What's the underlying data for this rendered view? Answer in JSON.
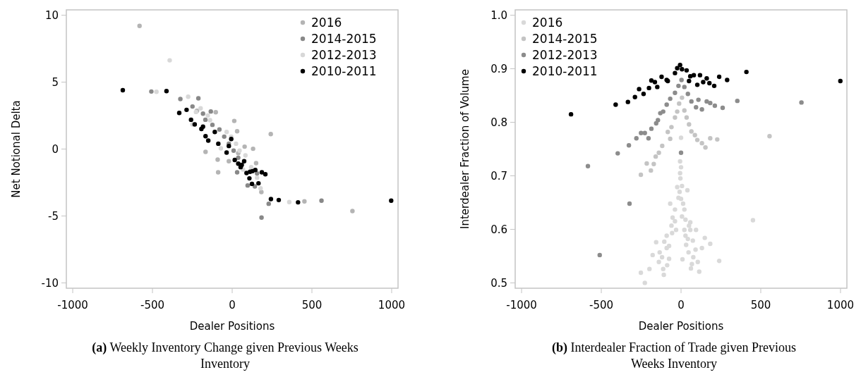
{
  "chart_data": [
    {
      "type": "scatter",
      "title": "(a) Weekly Inventory Change given Previous Weeks Inventory",
      "xlabel": "Dealer Positions",
      "ylabel": "Net Notional Delta",
      "xlim": [
        -1040,
        1040
      ],
      "xticks": [
        -1000,
        -500,
        0,
        500,
        1000
      ],
      "ylim": [
        -10.4,
        10.4
      ],
      "yticks": [
        -10,
        -5,
        0,
        5,
        10
      ],
      "legend": "top right",
      "marker": "circle",
      "grid": false,
      "series": [
        {
          "name": "2016",
          "color": "#b4b4b4",
          "x": [
            -581,
            242,
            13,
            -88,
            -167,
            78,
            131,
            150,
            -91,
            -21,
            31,
            754,
            453,
            183,
            -221,
            -103,
            38
          ],
          "values": [
            9.2,
            1.12,
            2.1,
            -1.74,
            -0.21,
            0.18,
            0.02,
            -1.05,
            -0.79,
            -0.91,
            1.33,
            -4.63,
            -3.91,
            -3.21,
            2.86,
            2.75,
            -0.3
          ]
        },
        {
          "name": "2014-2015",
          "color": "#888888",
          "x": [
            -507,
            -325,
            -212,
            -249,
            -183,
            -134,
            -168,
            -124,
            -80,
            -50,
            -21,
            9,
            38,
            31,
            97,
            156,
            142,
            229,
            560,
            184
          ],
          "values": [
            4.3,
            3.74,
            3.79,
            3.18,
            2.65,
            2.81,
            2.19,
            1.81,
            1.46,
            0.93,
            0.4,
            -0.12,
            -0.65,
            -1.74,
            -2.72,
            -1.82,
            -2.79,
            -4.09,
            -3.86,
            -5.12
          ]
        },
        {
          "name": "2012-2013",
          "color": "#d8d8d8",
          "x": [
            -392,
            -475,
            -276,
            -198,
            -153,
            -227,
            -249,
            -139,
            -35,
            -6,
            24,
            46,
            83,
            119,
            156,
            358,
            178,
            68,
            -71
          ],
          "values": [
            6.63,
            4.28,
            3.91,
            3.04,
            2.51,
            2.77,
            1.84,
            2.16,
            1.28,
            0.93,
            0.4,
            -0.12,
            -0.47,
            -1.35,
            -2.14,
            -3.96,
            -2.93,
            -1.53,
            0.05
          ]
        },
        {
          "name": "2010-2011",
          "color": "#000000",
          "x": [
            -686,
            -412,
            -332,
            -286,
            -258,
            -235,
            -193,
            -183,
            -167,
            -150,
            -87,
            -35,
            -6,
            16,
            38,
            53,
            75,
            90,
            112,
            127,
            145,
            108,
            124,
            165,
            186,
            208,
            243,
            292,
            413,
            997,
            -109,
            -21,
            60
          ],
          "values": [
            4.4,
            4.33,
            2.7,
            2.93,
            2.19,
            1.84,
            1.5,
            1.67,
            0.96,
            0.63,
            0.4,
            -0.26,
            0.75,
            -0.82,
            -1.09,
            -1.35,
            -0.91,
            -1.79,
            -1.7,
            -1.65,
            -1.56,
            -2.19,
            -2.6,
            -2.56,
            -1.74,
            -1.88,
            -3.74,
            -3.81,
            -3.98,
            -3.86,
            1.28,
            0.23,
            -1.18
          ]
        }
      ]
    },
    {
      "type": "scatter",
      "title": "(b) Interdealer Fraction of Trade given Previous Weeks Inventory",
      "xlabel": "Dealer Positions",
      "ylabel": "Interdealer Fraction of Volume",
      "xlim": [
        -1040,
        1040
      ],
      "xticks": [
        -1000,
        -500,
        0,
        500,
        1000
      ],
      "ylim": [
        0.49,
        1.01
      ],
      "yticks": [
        {
          "value": 0.5,
          "label": "0.5"
        },
        {
          "value": 0.6,
          "label": "0.6"
        },
        {
          "value": 0.7,
          "label": "0.7"
        },
        {
          "value": 0.8,
          "label": "0.8"
        },
        {
          "value": 0.9,
          "label": "0.9"
        },
        {
          "value": 1.0,
          "label": "1.0"
        }
      ],
      "legend": "top left",
      "marker": "circle",
      "grid": false,
      "series": [
        {
          "name": "2016",
          "color": "#d9d9d9",
          "x": [
            0,
            -6,
            0,
            -6,
            -4,
            6,
            -24,
            -9,
            40,
            -16,
            0,
            13,
            -68,
            21,
            -38,
            -53,
            6,
            28,
            -38,
            -60,
            58,
            50,
            -31,
            21,
            94,
            58,
            -56,
            -90,
            28,
            43,
            74,
            149,
            183,
            -156,
            -105,
            32,
            -75,
            -90,
            131,
            91,
            47,
            -134,
            -178,
            -119,
            77,
            -75,
            9,
            239,
            -139,
            105,
            68,
            -87,
            -112,
            -198,
            62,
            -252,
            114,
            -108,
            -227,
            451
          ],
          "values": [
            0.771,
            0.727,
            0.716,
            0.705,
            0.695,
            0.681,
            0.679,
            0.67,
            0.673,
            0.659,
            0.657,
            0.648,
            0.648,
            0.637,
            0.637,
            0.622,
            0.624,
            0.618,
            0.615,
            0.607,
            0.613,
            0.607,
            0.599,
            0.599,
            0.599,
            0.599,
            0.593,
            0.588,
            0.588,
            0.582,
            0.579,
            0.584,
            0.573,
            0.576,
            0.577,
            0.571,
            0.569,
            0.565,
            0.565,
            0.562,
            0.557,
            0.557,
            0.552,
            0.548,
            0.548,
            0.545,
            0.544,
            0.541,
            0.539,
            0.539,
            0.535,
            0.533,
            0.526,
            0.526,
            0.527,
            0.519,
            0.521,
            0.515,
            0.5,
            0.617
          ]
        },
        {
          "name": "2014-2015",
          "color": "#c4c4c4",
          "x": [
            -68,
            -83,
            -60,
            -38,
            -24,
            -12,
            6,
            21,
            35,
            50,
            65,
            87,
            102,
            131,
            153,
            183,
            227,
            555,
            -118,
            -139,
            -159,
            -189,
            -215,
            -252,
            -171
          ],
          "values": [
            0.769,
            0.782,
            0.791,
            0.809,
            0.82,
            0.835,
            0.846,
            0.822,
            0.809,
            0.796,
            0.783,
            0.776,
            0.767,
            0.761,
            0.753,
            0.77,
            0.768,
            0.774,
            0.756,
            0.743,
            0.736,
            0.71,
            0.723,
            0.702,
            0.722
          ]
        },
        {
          "name": "2012-2013",
          "color": "#8c8c8c",
          "x": [
            -584,
            -397,
            -327,
            -280,
            -251,
            -227,
            -204,
            -186,
            -156,
            -145,
            -130,
            -112,
            -90,
            -68,
            -38,
            -16,
            3,
            21,
            43,
            65,
            94,
            109,
            131,
            161,
            183,
            212,
            261,
            353,
            755,
            0,
            -323,
            -510
          ],
          "values": [
            0.718,
            0.742,
            0.757,
            0.77,
            0.78,
            0.78,
            0.77,
            0.788,
            0.798,
            0.804,
            0.817,
            0.82,
            0.833,
            0.844,
            0.855,
            0.868,
            0.879,
            0.866,
            0.853,
            0.839,
            0.828,
            0.842,
            0.824,
            0.839,
            0.836,
            0.831,
            0.827,
            0.84,
            0.837,
            0.743,
            0.648,
            0.552
          ]
        },
        {
          "name": "2010-2011",
          "color": "#000000",
          "x": [
            -690,
            -410,
            -333,
            -289,
            -263,
            -235,
            -201,
            -186,
            -164,
            -149,
            -122,
            -90,
            -38,
            -24,
            -6,
            6,
            35,
            58,
            80,
            102,
            119,
            139,
            161,
            178,
            208,
            239,
            289,
            410,
            999,
            -83,
            50
          ],
          "values": [
            0.815,
            0.833,
            0.838,
            0.847,
            0.862,
            0.853,
            0.864,
            0.878,
            0.875,
            0.866,
            0.885,
            0.879,
            0.892,
            0.901,
            0.907,
            0.899,
            0.897,
            0.886,
            0.888,
            0.87,
            0.888,
            0.875,
            0.882,
            0.873,
            0.868,
            0.885,
            0.879,
            0.894,
            0.877,
            0.877,
            0.877
          ]
        }
      ]
    }
  ]
}
